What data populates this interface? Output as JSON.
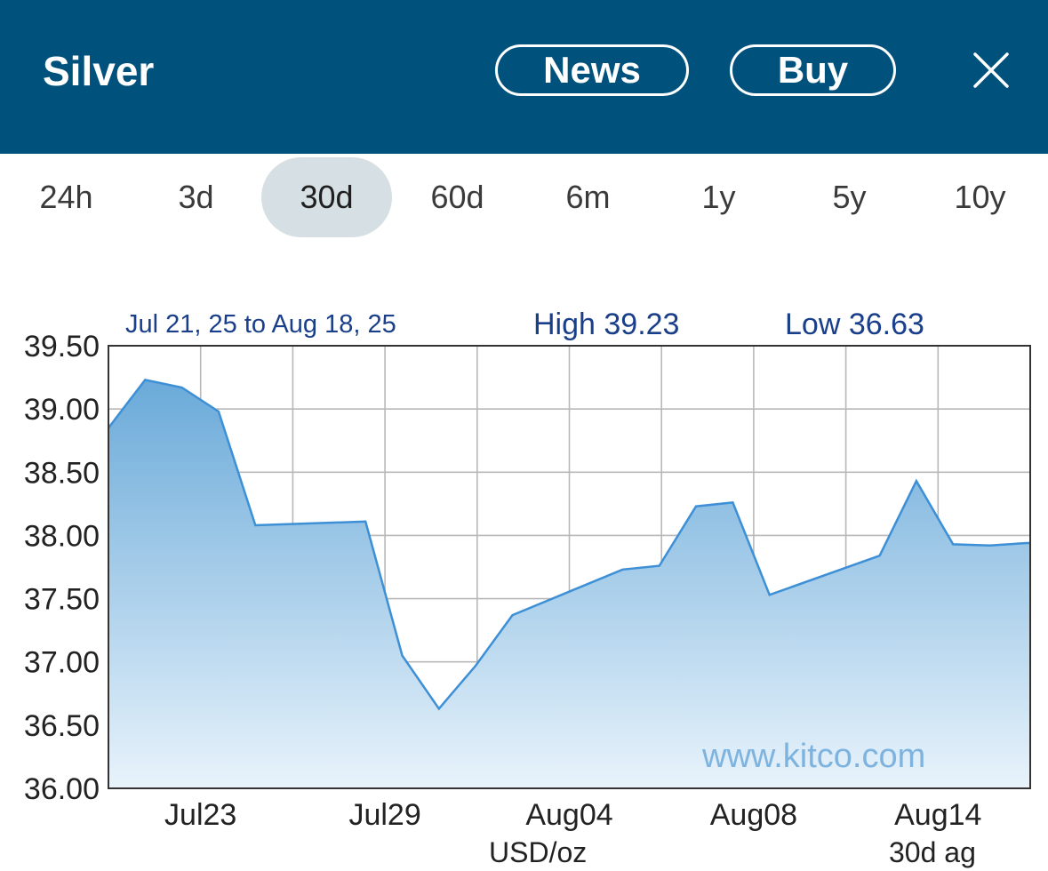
{
  "header": {
    "title": "Silver",
    "news_label": "News",
    "buy_label": "Buy",
    "close_icon": "close-icon",
    "background": "#00527d"
  },
  "tabs": [
    {
      "label": "24h",
      "active": false
    },
    {
      "label": "3d",
      "active": false
    },
    {
      "label": "30d",
      "active": true
    },
    {
      "label": "60d",
      "active": false
    },
    {
      "label": "6m",
      "active": false
    },
    {
      "label": "1y",
      "active": false
    },
    {
      "label": "5y",
      "active": false
    },
    {
      "label": "10y",
      "active": false
    }
  ],
  "chart_data": {
    "type": "area",
    "date_range": "Jul 21, 25 to Aug 18, 25",
    "high_label": "High 39.23",
    "low_label": "Low 36.63",
    "watermark": "www.kitco.com",
    "xlabel": "USD/oz",
    "period_note": "30d ag",
    "ylim": [
      36.0,
      39.5
    ],
    "yticks": [
      "39.50",
      "39.00",
      "38.50",
      "38.00",
      "37.50",
      "37.00",
      "36.50",
      "36.00"
    ],
    "x_tick_labels": [
      "Jul23",
      "Jul29",
      "Aug04",
      "Aug08",
      "Aug14"
    ],
    "grid": true,
    "line_color": "#3d8fd6",
    "fill_top": "#6aaad9",
    "fill_bottom": "#e8f3fb",
    "points": [
      {
        "x": "Jul 21",
        "y": 38.85
      },
      {
        "x": "Jul 22",
        "y": 39.23
      },
      {
        "x": "Jul 23",
        "y": 39.17
      },
      {
        "x": "Jul 24",
        "y": 38.98
      },
      {
        "x": "Jul 25",
        "y": 38.08
      },
      {
        "x": "Jul 28",
        "y": 38.11
      },
      {
        "x": "Jul 29",
        "y": 37.05
      },
      {
        "x": "Jul 30",
        "y": 36.63
      },
      {
        "x": "Jul 31",
        "y": 36.97
      },
      {
        "x": "Aug 01",
        "y": 37.37
      },
      {
        "x": "Aug 04",
        "y": 37.73
      },
      {
        "x": "Aug 05",
        "y": 37.76
      },
      {
        "x": "Aug 06",
        "y": 38.23
      },
      {
        "x": "Aug 07",
        "y": 38.26
      },
      {
        "x": "Aug 08",
        "y": 37.53
      },
      {
        "x": "Aug 11",
        "y": 37.84
      },
      {
        "x": "Aug 12",
        "y": 38.43
      },
      {
        "x": "Aug 13",
        "y": 37.93
      },
      {
        "x": "Aug 14",
        "y": 37.92
      },
      {
        "x": "Aug 15",
        "y": 37.94
      }
    ]
  }
}
